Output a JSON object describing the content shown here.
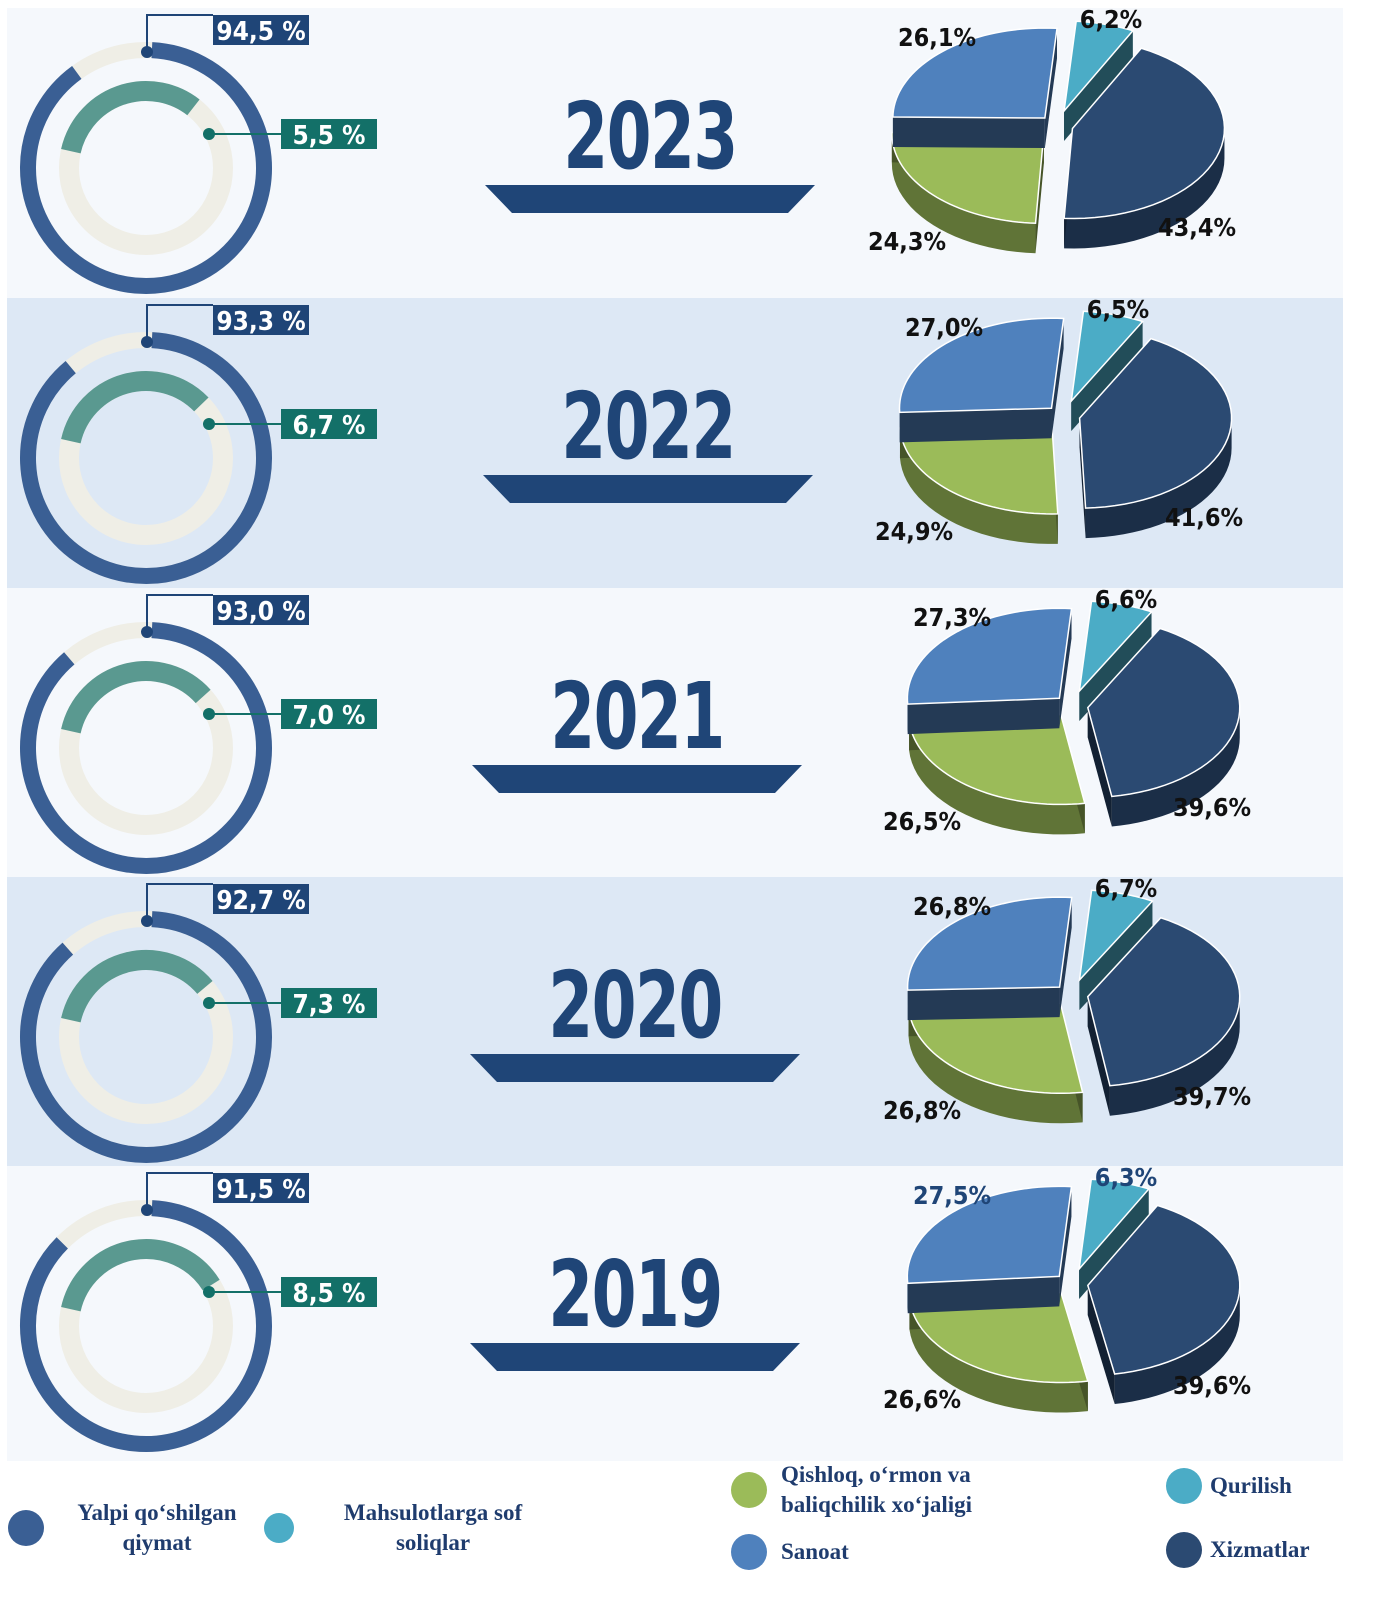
{
  "colors": {
    "band_light": "#f5f8fc",
    "band_dark": "#dde8f5",
    "navy": "#1f4577",
    "outer_ring": "#3a5f94",
    "inner_ring": "#5a9990",
    "ring_track": "#efeee6",
    "teal_label": "#137068",
    "qishloq": "#9bbb59",
    "qurilish": "#4bacc6",
    "sanoat": "#4f81bd",
    "xizmatlar": "#2b4a72"
  },
  "chart_data": [
    {
      "type": "pie",
      "year": "2023",
      "gva": 94.5,
      "taxes": 5.5,
      "gva_label": "94,5 %",
      "taxes_label": "5,5 %",
      "categories": [
        "Xizmatlar",
        "Qurilish",
        "Sanoat",
        "Qishloq, o‘rmon va baliqchilik xo‘jaligi"
      ],
      "values": [
        43.4,
        6.2,
        26.1,
        24.3
      ],
      "labels": [
        "43,4%",
        "6,2%",
        "26,1%",
        "24,3%"
      ]
    },
    {
      "type": "pie",
      "year": "2022",
      "gva": 93.3,
      "taxes": 6.7,
      "gva_label": "93,3 %",
      "taxes_label": "6,7 %",
      "categories": [
        "Xizmatlar",
        "Qurilish",
        "Sanoat",
        "Qishloq, o‘rmon va baliqchilik xo‘jaligi"
      ],
      "values": [
        41.6,
        6.5,
        27.0,
        24.9
      ],
      "labels": [
        "41,6%",
        "6,5%",
        "27,0%",
        "24,9%"
      ]
    },
    {
      "type": "pie",
      "year": "2021",
      "gva": 93.0,
      "taxes": 7.0,
      "gva_label": "93,0 %",
      "taxes_label": "7,0 %",
      "categories": [
        "Xizmatlar",
        "Qurilish",
        "Sanoat",
        "Qishloq, o‘rmon va baliqchilik xo‘jaligi"
      ],
      "values": [
        39.6,
        6.6,
        27.3,
        26.5
      ],
      "labels": [
        "39,6%",
        "6,6%",
        "27,3%",
        "26,5%"
      ]
    },
    {
      "type": "pie",
      "year": "2020",
      "gva": 92.7,
      "taxes": 7.3,
      "gva_label": "92,7 %",
      "taxes_label": "7,3 %",
      "categories": [
        "Xizmatlar",
        "Qurilish",
        "Sanoat",
        "Qishloq, o‘rmon va baliqchilik xo‘jaligi"
      ],
      "values": [
        39.7,
        6.7,
        26.8,
        26.8
      ],
      "labels": [
        "39,7%",
        "6,7%",
        "26,8%",
        "26,8%"
      ]
    },
    {
      "type": "pie",
      "year": "2019",
      "gva": 91.5,
      "taxes": 8.5,
      "gva_label": "91,5 %",
      "taxes_label": "8,5 %",
      "categories": [
        "Xizmatlar",
        "Qurilish",
        "Sanoat",
        "Qishloq, o‘rmon va baliqchilik xo‘jaligi"
      ],
      "values": [
        39.6,
        6.3,
        27.5,
        26.6
      ],
      "labels": [
        "39,6%",
        "6,3%",
        "27,5%",
        "26,6%"
      ]
    }
  ],
  "legend": {
    "gva": "Yalpi qo‘shilgan qiymat",
    "taxes": "Mahsulotlarga sof soliqlar",
    "qishloq": "Qishloq, o‘rmon  va baliqchilik xo‘jaligi",
    "qurilish": "Qurilish",
    "sanoat": "Sanoat",
    "xizmatlar": "Xizmatlar"
  }
}
